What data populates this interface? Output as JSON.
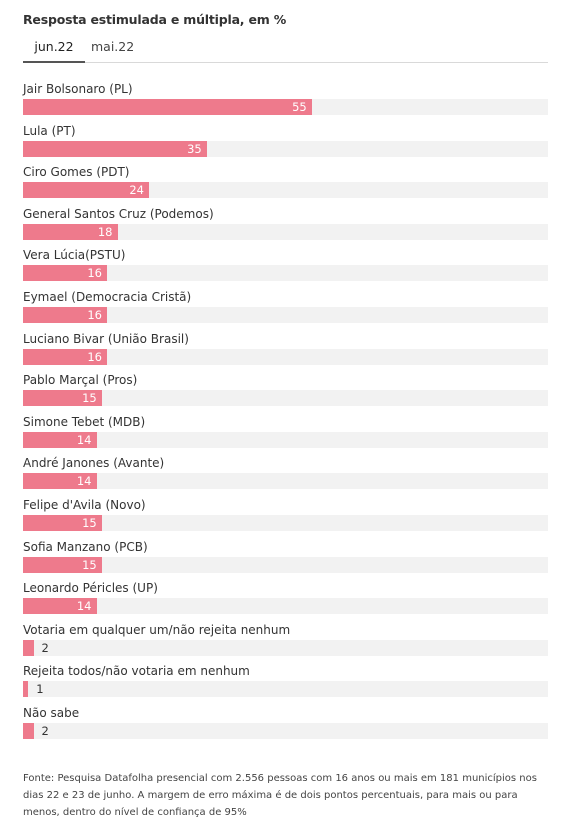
{
  "title": "Resposta estimulada e múltipla, em %",
  "tabs": [
    {
      "label": "jun.22",
      "active": true
    },
    {
      "label": "mai.22",
      "active": false
    }
  ],
  "chart_data": {
    "type": "bar",
    "orientation": "horizontal",
    "categories": [
      "Jair Bolsonaro (PL)",
      "Lula (PT)",
      "Ciro Gomes (PDT)",
      "General Santos Cruz (Podemos)",
      "Vera Lúcia(PSTU)",
      "Eymael (Democracia Cristã)",
      "Luciano Bivar (União Brasil)",
      "Pablo Marçal (Pros)",
      "Simone Tebet (MDB)",
      "André Janones (Avante)",
      "Felipe d'Avila (Novo)",
      "Sofia Manzano (PCB)",
      "Leonardo Péricles (UP)",
      "Votaria em qualquer um/não rejeita nenhum",
      "Rejeita todos/não votaria em nenhum",
      "Não sabe"
    ],
    "values": [
      55,
      35,
      24,
      18,
      16,
      16,
      16,
      15,
      14,
      14,
      15,
      15,
      14,
      2,
      1,
      2
    ],
    "xlim": [
      0,
      100
    ],
    "bar_color": "#ee7a8c",
    "track_color": "#f2f2f2",
    "grid": false
  },
  "footer": "Fonte: Pesquisa Datafolha presencial com 2.556 pessoas com 16 anos ou mais em 181 municípios nos dias 22 e 23 de junho. A margem de erro máxima é de dois pontos percentuais, para mais ou para menos, dentro do nível de confiança de 95%"
}
